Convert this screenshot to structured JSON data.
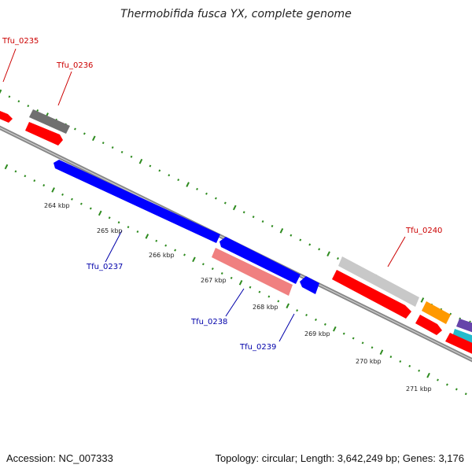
{
  "title": "Thermobifida fusca YX, complete genome",
  "footer": {
    "accession": "Accession: NC_007333",
    "summary": "Topology: circular; Length: 3,642,249 bp; Genes: 3,176"
  },
  "colors": {
    "backbone": "#888888",
    "ticks": "#2e8b1f",
    "label_red": "#cc0000",
    "label_blue": "#0000aa",
    "gene_red": "#ff0000",
    "gene_blue": "#0000ff",
    "gene_gray": "#707070",
    "gene_lightgray": "#c8c8c8",
    "gene_pink": "#f08080",
    "gene_orange": "#ff9900",
    "gene_cyan": "#22bbcc",
    "gene_purple": "#6644aa"
  },
  "ruler": {
    "unit": "kbp",
    "labels": [
      "264 kbp",
      "265 kbp",
      "266 kbp",
      "267 kbp",
      "268 kbp",
      "269 kbp",
      "270 kbp",
      "271 kbp"
    ]
  },
  "gene_labels": [
    {
      "id": "Tfu_0235",
      "strand": "forward"
    },
    {
      "id": "Tfu_0236",
      "strand": "forward"
    },
    {
      "id": "Tfu_0237",
      "strand": "reverse"
    },
    {
      "id": "Tfu_0238",
      "strand": "reverse"
    },
    {
      "id": "Tfu_0239",
      "strand": "reverse"
    },
    {
      "id": "Tfu_0240",
      "strand": "forward"
    }
  ]
}
